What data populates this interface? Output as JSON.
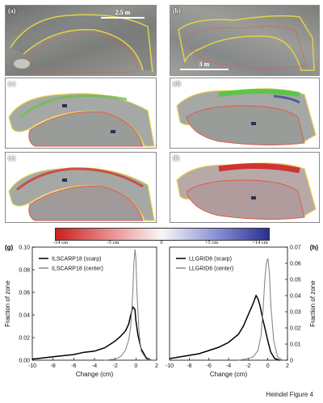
{
  "panels": {
    "a": {
      "label": "(a)",
      "scale": "2.5 m"
    },
    "b": {
      "label": "(b)",
      "scale": "3 m"
    },
    "c": {
      "label": "(c)"
    },
    "d": {
      "label": "(d)"
    },
    "e": {
      "label": "(e)"
    },
    "f": {
      "label": "(f)"
    }
  },
  "colorbar": {
    "ticks": [
      "-14 cm",
      "-5 cm",
      "0",
      "+5 cm",
      "+14 cm"
    ],
    "colors": {
      "neg": "#cc1f1f",
      "mid": "#f7f7f7",
      "pos": "#2a2f8e"
    }
  },
  "chart_data": [
    {
      "panel": "(g)",
      "type": "line",
      "xlabel": "Change (cm)",
      "ylabel": "Fraction of zone",
      "xlim": [
        -10,
        2
      ],
      "ylim": [
        0,
        0.1
      ],
      "xticks": [
        "-10",
        "-8",
        "-6",
        "-4",
        "-2",
        "0",
        "2"
      ],
      "yticks": [
        "0.00",
        "0.02",
        "0.04",
        "0.06",
        "0.08",
        "0.10"
      ],
      "legend": "top-left",
      "series": [
        {
          "name": "ILSCARP18 (scarp)",
          "color": "#000000",
          "x": [
            -10,
            -9,
            -8,
            -7,
            -6,
            -5,
            -4,
            -3,
            -2.5,
            -2,
            -1.5,
            -1,
            -0.7,
            -0.5,
            -0.3,
            -0.1,
            0,
            0.2,
            0.5,
            1,
            1.5
          ],
          "y": [
            0.001,
            0.002,
            0.003,
            0.004,
            0.005,
            0.007,
            0.008,
            0.011,
            0.014,
            0.017,
            0.021,
            0.026,
            0.032,
            0.04,
            0.047,
            0.045,
            0.035,
            0.022,
            0.01,
            0.002,
            0.0
          ]
        },
        {
          "name": "ILSCARP18 (center)",
          "color": "#888888",
          "x": [
            -3,
            -2,
            -1.5,
            -1,
            -0.7,
            -0.5,
            -0.3,
            -0.2,
            -0.1,
            0,
            0.1,
            0.3,
            0.5,
            1,
            1.5
          ],
          "y": [
            0.0,
            0.001,
            0.003,
            0.009,
            0.018,
            0.03,
            0.06,
            0.085,
            0.098,
            0.09,
            0.06,
            0.025,
            0.008,
            0.001,
            0.0
          ]
        }
      ]
    },
    {
      "panel": "(h)",
      "type": "line",
      "xlabel": "Change (cm)",
      "ylabel": "Fraction of zone",
      "xlim": [
        -10,
        2
      ],
      "ylim": [
        0,
        0.07
      ],
      "xticks": [
        "-10",
        "-8",
        "-6",
        "-4",
        "-2",
        "0",
        "2"
      ],
      "yticks": [
        "0",
        "0.01",
        "0.02",
        "0.03",
        "0.04",
        "0.05",
        "0.06",
        "0.07"
      ],
      "legend": "top-left",
      "series": [
        {
          "name": "LLGRID6 (scarp)",
          "color": "#000000",
          "x": [
            -10,
            -9,
            -8,
            -7,
            -6,
            -5,
            -4,
            -3,
            -2.5,
            -2,
            -1.5,
            -1.2,
            -1,
            -0.8,
            -0.5,
            -0.3,
            0,
            0.3,
            0.7,
            1.2
          ],
          "y": [
            0.001,
            0.002,
            0.003,
            0.004,
            0.006,
            0.008,
            0.011,
            0.016,
            0.021,
            0.028,
            0.035,
            0.04,
            0.038,
            0.034,
            0.025,
            0.02,
            0.012,
            0.005,
            0.001,
            0.0
          ]
        },
        {
          "name": "LLGRID6 (center)",
          "color": "#888888",
          "x": [
            -3,
            -2,
            -1.5,
            -1,
            -0.7,
            -0.5,
            -0.3,
            -0.15,
            0,
            0.15,
            0.3,
            0.6,
            1,
            1.5
          ],
          "y": [
            0.0,
            0.001,
            0.002,
            0.006,
            0.015,
            0.03,
            0.05,
            0.06,
            0.063,
            0.055,
            0.035,
            0.012,
            0.002,
            0.0
          ]
        }
      ]
    }
  ],
  "caption": "Heindel Figure 4"
}
